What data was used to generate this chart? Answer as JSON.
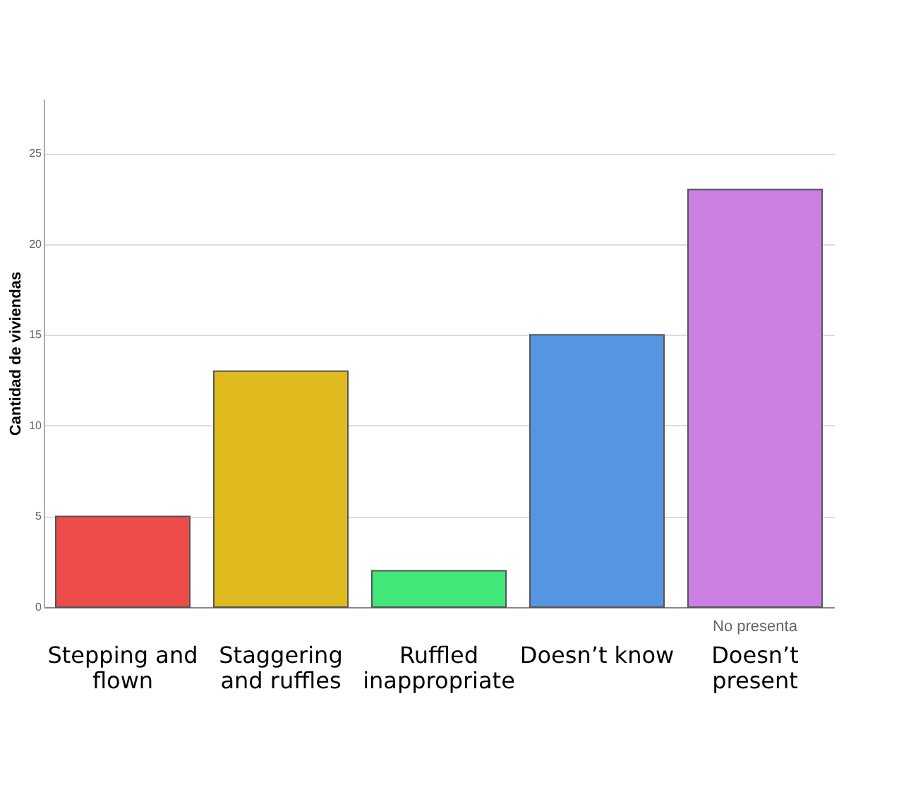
{
  "chart_data": {
    "type": "bar",
    "ylabel": "Cantidad de viviendas",
    "categories": [
      "Stepping and flown",
      "Staggering and ruffles",
      "Ruffled inappropriate",
      "Doesn’t know",
      "Doesn’t present"
    ],
    "values": [
      5,
      13,
      2,
      15,
      23
    ],
    "colors": [
      "#ee4b4b",
      "#dfbb1f",
      "#40e87a",
      "#5596e3",
      "#cb7fe3"
    ],
    "ylim": [
      0,
      28
    ],
    "yticks": [
      0,
      5,
      10,
      15,
      20,
      25
    ],
    "grid": "y",
    "annotations": [
      {
        "text": "No presenta",
        "x": "Doesn’t present",
        "y": 0
      }
    ]
  }
}
